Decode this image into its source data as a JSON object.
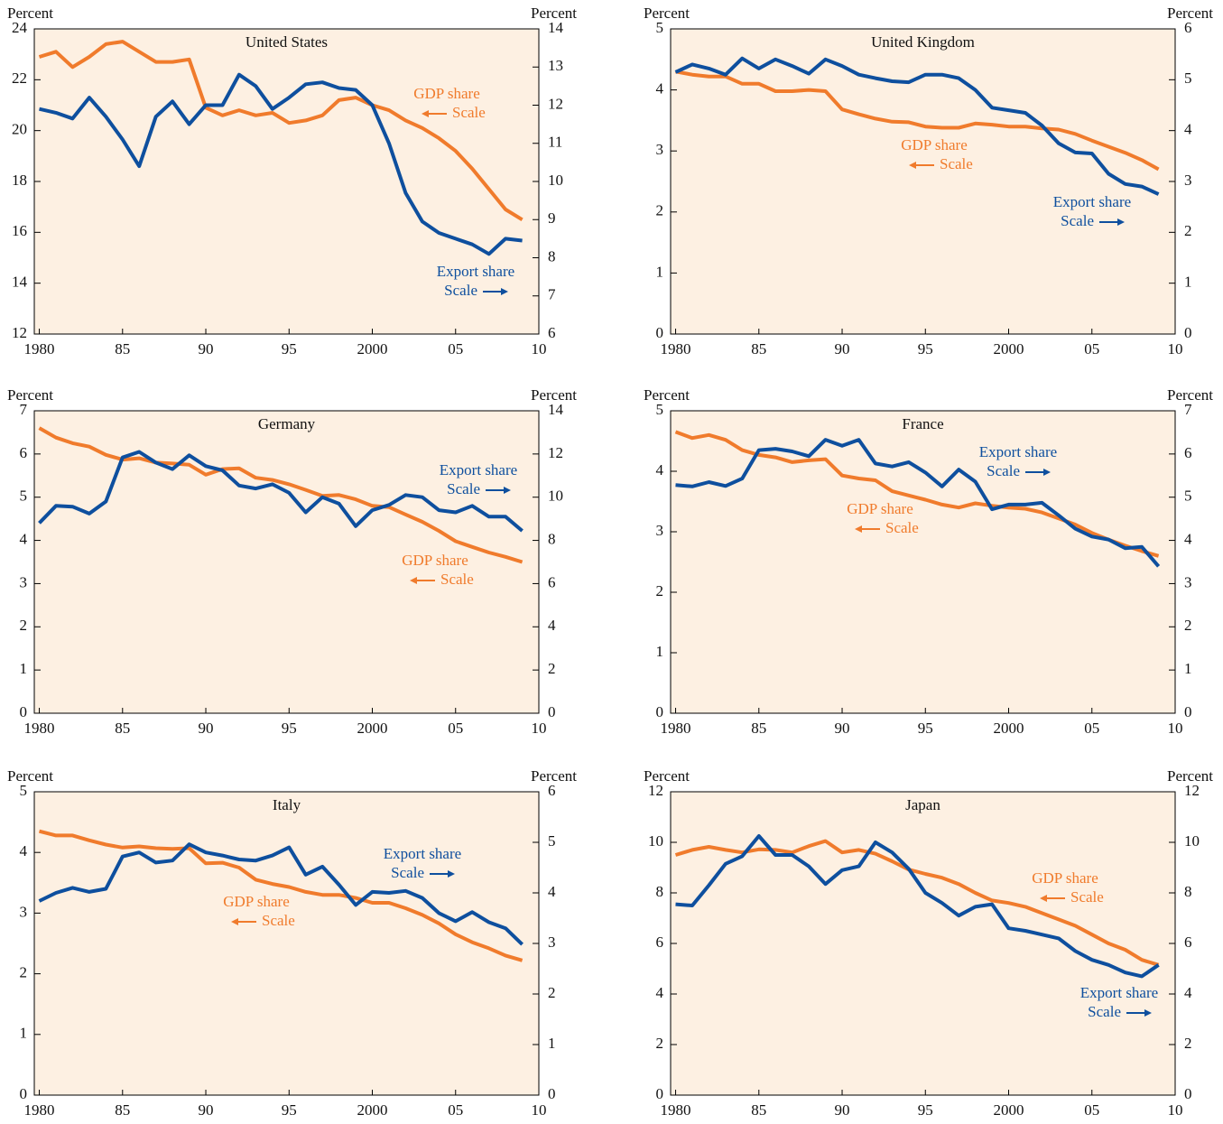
{
  "chart_data": [
    {
      "type": "line",
      "title": "United States",
      "ylabel": "Percent",
      "y2label": "Percent",
      "x": [
        1980,
        1981,
        1982,
        1983,
        1984,
        1985,
        1986,
        1987,
        1988,
        1989,
        1990,
        1991,
        1992,
        1993,
        1994,
        1995,
        1996,
        1997,
        1998,
        1999,
        2000,
        2001,
        2002,
        2003,
        2004,
        2005,
        2006,
        2007,
        2008,
        2009
      ],
      "xlim": [
        1979.7,
        2010
      ],
      "xticks": [
        1980,
        {
          "value": 1985,
          "label": "85"
        },
        {
          "value": 1990,
          "label": "90"
        },
        {
          "value": 1995,
          "label": "95"
        },
        2000,
        {
          "value": 2005,
          "label": "05"
        },
        {
          "value": 2010,
          "label": "10"
        }
      ],
      "ylim": [
        12,
        24
      ],
      "yticks": [
        12,
        14,
        16,
        18,
        20,
        22,
        24
      ],
      "y2lim": [
        6,
        14
      ],
      "y2ticks": [
        6,
        7,
        8,
        9,
        10,
        11,
        12,
        13,
        14
      ],
      "series": [
        {
          "name": "GDP share",
          "scale_label": "Scale",
          "color": "#f07b2c",
          "values": [
            22.9,
            23.1,
            22.5,
            22.9,
            23.4,
            23.5,
            23.1,
            22.7,
            22.7,
            22.8,
            20.9,
            20.6,
            20.8,
            20.6,
            20.7,
            20.3,
            20.4,
            20.6,
            21.2,
            21.3,
            21.0,
            20.8,
            20.4,
            20.1,
            19.7,
            19.2,
            18.5,
            17.7,
            16.9,
            16.5
          ]
        },
        {
          "name": "Export share",
          "scale_label": "Scale",
          "color": "#0e4f9e",
          "axis": "y2",
          "values": [
            11.9,
            11.8,
            11.65,
            12.2,
            11.7,
            11.1,
            10.4,
            11.7,
            12.1,
            11.5,
            12.0,
            12.0,
            12.8,
            12.5,
            11.9,
            12.2,
            12.55,
            12.6,
            12.45,
            12.4,
            12.0,
            11.0,
            9.7,
            8.95,
            8.65,
            8.5,
            8.35,
            8.1,
            8.5,
            8.45
          ]
        }
      ]
    },
    {
      "type": "line",
      "title": "United Kingdom",
      "ylabel": "Percent",
      "y2label": "Percent",
      "x": [
        1980,
        1981,
        1982,
        1983,
        1984,
        1985,
        1986,
        1987,
        1988,
        1989,
        1990,
        1991,
        1992,
        1993,
        1994,
        1995,
        1996,
        1997,
        1998,
        1999,
        2000,
        2001,
        2002,
        2003,
        2004,
        2005,
        2006,
        2007,
        2008,
        2009
      ],
      "xlim": [
        1979.7,
        2010
      ],
      "xticks": [
        1980,
        {
          "value": 1985,
          "label": "85"
        },
        {
          "value": 1990,
          "label": "90"
        },
        {
          "value": 1995,
          "label": "95"
        },
        2000,
        {
          "value": 2005,
          "label": "05"
        },
        {
          "value": 2010,
          "label": "10"
        }
      ],
      "ylim": [
        0,
        5
      ],
      "yticks": [
        0,
        1,
        2,
        3,
        4,
        5
      ],
      "y2lim": [
        0,
        6
      ],
      "y2ticks": [
        0,
        1,
        2,
        3,
        4,
        5,
        6
      ],
      "series": [
        {
          "name": "GDP share",
          "scale_label": "Scale",
          "color": "#f07b2c",
          "values": [
            4.3,
            4.25,
            4.22,
            4.22,
            4.1,
            4.1,
            3.98,
            3.98,
            4.0,
            3.98,
            3.68,
            3.6,
            3.53,
            3.48,
            3.47,
            3.4,
            3.38,
            3.38,
            3.45,
            3.43,
            3.4,
            3.4,
            3.37,
            3.35,
            3.28,
            3.17,
            3.07,
            2.97,
            2.85,
            2.7
          ]
        },
        {
          "name": "Export share",
          "scale_label": "Scale",
          "color": "#0e4f9e",
          "axis": "y2",
          "values": [
            5.15,
            5.3,
            5.22,
            5.1,
            5.42,
            5.22,
            5.4,
            5.27,
            5.12,
            5.4,
            5.27,
            5.1,
            5.03,
            4.97,
            4.95,
            5.1,
            5.1,
            5.03,
            4.8,
            4.45,
            4.4,
            4.35,
            4.1,
            3.75,
            3.57,
            3.55,
            3.15,
            2.95,
            2.9,
            2.75
          ]
        }
      ]
    },
    {
      "type": "line",
      "title": "Germany",
      "ylabel": "Percent",
      "y2label": "Percent",
      "x": [
        1980,
        1981,
        1982,
        1983,
        1984,
        1985,
        1986,
        1987,
        1988,
        1989,
        1990,
        1991,
        1992,
        1993,
        1994,
        1995,
        1996,
        1997,
        1998,
        1999,
        2000,
        2001,
        2002,
        2003,
        2004,
        2005,
        2006,
        2007,
        2008,
        2009
      ],
      "xlim": [
        1979.7,
        2010
      ],
      "xticks": [
        1980,
        {
          "value": 1985,
          "label": "85"
        },
        {
          "value": 1990,
          "label": "90"
        },
        {
          "value": 1995,
          "label": "95"
        },
        2000,
        {
          "value": 2005,
          "label": "05"
        },
        {
          "value": 2010,
          "label": "10"
        }
      ],
      "ylim": [
        0,
        7
      ],
      "yticks": [
        0,
        1,
        2,
        3,
        4,
        5,
        6,
        7
      ],
      "y2lim": [
        0,
        14
      ],
      "y2ticks": [
        0,
        2,
        4,
        6,
        8,
        10,
        12,
        14
      ],
      "series": [
        {
          "name": "GDP share",
          "scale_label": "Scale",
          "color": "#f07b2c",
          "values": [
            6.6,
            6.38,
            6.25,
            6.17,
            5.98,
            5.87,
            5.9,
            5.8,
            5.78,
            5.75,
            5.52,
            5.65,
            5.67,
            5.45,
            5.4,
            5.3,
            5.17,
            5.03,
            5.05,
            4.95,
            4.8,
            4.77,
            4.6,
            4.43,
            4.22,
            3.98,
            3.85,
            3.72,
            3.62,
            3.5
          ]
        },
        {
          "name": "Export share",
          "scale_label": "Scale",
          "color": "#0e4f9e",
          "axis": "y2",
          "values": [
            8.8,
            9.6,
            9.56,
            9.24,
            9.8,
            11.84,
            12.1,
            11.6,
            11.3,
            11.94,
            11.44,
            11.24,
            10.54,
            10.4,
            10.6,
            10.2,
            9.3,
            10.0,
            9.7,
            8.66,
            9.4,
            9.64,
            10.1,
            10.0,
            9.4,
            9.3,
            9.6,
            9.1,
            9.1,
            8.44
          ]
        }
      ]
    },
    {
      "type": "line",
      "title": "France",
      "ylabel": "Percent",
      "y2label": "Percent",
      "x": [
        1980,
        1981,
        1982,
        1983,
        1984,
        1985,
        1986,
        1987,
        1988,
        1989,
        1990,
        1991,
        1992,
        1993,
        1994,
        1995,
        1996,
        1997,
        1998,
        1999,
        2000,
        2001,
        2002,
        2003,
        2004,
        2005,
        2006,
        2007,
        2008,
        2009
      ],
      "xlim": [
        1979.7,
        2010
      ],
      "xticks": [
        1980,
        {
          "value": 1985,
          "label": "85"
        },
        {
          "value": 1990,
          "label": "90"
        },
        {
          "value": 1995,
          "label": "95"
        },
        2000,
        {
          "value": 2005,
          "label": "05"
        },
        {
          "value": 2010,
          "label": "10"
        }
      ],
      "ylim": [
        0,
        5
      ],
      "yticks": [
        0,
        1,
        2,
        3,
        4,
        5
      ],
      "y2lim": [
        0,
        7
      ],
      "y2ticks": [
        0,
        1,
        2,
        3,
        4,
        5,
        6,
        7
      ],
      "series": [
        {
          "name": "GDP share",
          "scale_label": "Scale",
          "color": "#f07b2c",
          "values": [
            4.65,
            4.55,
            4.6,
            4.52,
            4.35,
            4.27,
            4.23,
            4.15,
            4.18,
            4.2,
            3.93,
            3.88,
            3.85,
            3.67,
            3.6,
            3.53,
            3.45,
            3.4,
            3.47,
            3.43,
            3.4,
            3.38,
            3.32,
            3.22,
            3.12,
            2.98,
            2.87,
            2.77,
            2.68,
            2.6
          ]
        },
        {
          "name": "Export share",
          "scale_label": "Scale",
          "color": "#0e4f9e",
          "axis": "y2",
          "values": [
            5.28,
            5.25,
            5.35,
            5.26,
            5.43,
            6.09,
            6.12,
            6.06,
            5.95,
            6.33,
            6.19,
            6.33,
            5.78,
            5.71,
            5.81,
            5.57,
            5.25,
            5.64,
            5.36,
            4.72,
            4.83,
            4.83,
            4.87,
            4.58,
            4.27,
            4.09,
            4.02,
            3.82,
            3.85,
            3.4
          ]
        }
      ]
    },
    {
      "type": "line",
      "title": "Italy",
      "ylabel": "Percent",
      "y2label": "Percent",
      "x": [
        1980,
        1981,
        1982,
        1983,
        1984,
        1985,
        1986,
        1987,
        1988,
        1989,
        1990,
        1991,
        1992,
        1993,
        1994,
        1995,
        1996,
        1997,
        1998,
        1999,
        2000,
        2001,
        2002,
        2003,
        2004,
        2005,
        2006,
        2007,
        2008,
        2009
      ],
      "xlim": [
        1979.7,
        2010
      ],
      "xticks": [
        1980,
        {
          "value": 1985,
          "label": "85"
        },
        {
          "value": 1990,
          "label": "90"
        },
        {
          "value": 1995,
          "label": "95"
        },
        2000,
        {
          "value": 2005,
          "label": "05"
        },
        {
          "value": 2010,
          "label": "10"
        }
      ],
      "ylim": [
        0,
        5
      ],
      "yticks": [
        0,
        1,
        2,
        3,
        4,
        5
      ],
      "y2lim": [
        0,
        6
      ],
      "y2ticks": [
        0,
        1,
        2,
        3,
        4,
        5,
        6
      ],
      "series": [
        {
          "name": "GDP share",
          "scale_label": "Scale",
          "color": "#f07b2c",
          "values": [
            4.35,
            4.28,
            4.28,
            4.2,
            4.13,
            4.08,
            4.1,
            4.07,
            4.06,
            4.07,
            3.82,
            3.83,
            3.75,
            3.55,
            3.48,
            3.43,
            3.35,
            3.3,
            3.3,
            3.25,
            3.17,
            3.17,
            3.08,
            2.97,
            2.83,
            2.65,
            2.52,
            2.42,
            2.3,
            2.22
          ]
        },
        {
          "name": "Export share",
          "scale_label": "Scale",
          "color": "#0e4f9e",
          "axis": "y2",
          "values": [
            3.84,
            4.0,
            4.1,
            4.02,
            4.08,
            4.72,
            4.8,
            4.6,
            4.64,
            4.96,
            4.8,
            4.74,
            4.66,
            4.64,
            4.74,
            4.9,
            4.36,
            4.52,
            4.16,
            3.76,
            4.02,
            4.0,
            4.04,
            3.9,
            3.6,
            3.44,
            3.62,
            3.42,
            3.3,
            2.98
          ]
        }
      ]
    },
    {
      "type": "line",
      "title": "Japan",
      "ylabel": "Percent",
      "y2label": "Percent",
      "x": [
        1980,
        1981,
        1982,
        1983,
        1984,
        1985,
        1986,
        1987,
        1988,
        1989,
        1990,
        1991,
        1992,
        1993,
        1994,
        1995,
        1996,
        1997,
        1998,
        1999,
        2000,
        2001,
        2002,
        2003,
        2004,
        2005,
        2006,
        2007,
        2008,
        2009
      ],
      "xlim": [
        1979.7,
        2010
      ],
      "xticks": [
        1980,
        {
          "value": 1985,
          "label": "85"
        },
        {
          "value": 1990,
          "label": "90"
        },
        {
          "value": 1995,
          "label": "95"
        },
        2000,
        {
          "value": 2005,
          "label": "05"
        },
        {
          "value": 2010,
          "label": "10"
        }
      ],
      "ylim": [
        0,
        12
      ],
      "yticks": [
        0,
        2,
        4,
        6,
        8,
        10,
        12
      ],
      "y2lim": [
        0,
        12
      ],
      "y2ticks": [
        0,
        2,
        4,
        6,
        8,
        10,
        12
      ],
      "series": [
        {
          "name": "GDP share",
          "scale_label": "Scale",
          "color": "#f07b2c",
          "values": [
            9.5,
            9.7,
            9.82,
            9.7,
            9.6,
            9.72,
            9.7,
            9.6,
            9.85,
            10.05,
            9.6,
            9.7,
            9.55,
            9.25,
            8.92,
            8.75,
            8.6,
            8.35,
            8.0,
            7.7,
            7.6,
            7.45,
            7.2,
            6.95,
            6.7,
            6.35,
            6.0,
            5.75,
            5.35,
            5.15
          ]
        },
        {
          "name": "Export share",
          "scale_label": "Scale",
          "color": "#0e4f9e",
          "axis": "y2",
          "values": [
            7.55,
            7.5,
            8.3,
            9.15,
            9.45,
            10.25,
            9.5,
            9.5,
            9.05,
            8.35,
            8.9,
            9.05,
            10.0,
            9.6,
            8.95,
            8.0,
            7.6,
            7.1,
            7.45,
            7.55,
            6.6,
            6.5,
            6.35,
            6.2,
            5.7,
            5.35,
            5.15,
            4.85,
            4.7,
            5.15
          ]
        }
      ]
    }
  ]
}
